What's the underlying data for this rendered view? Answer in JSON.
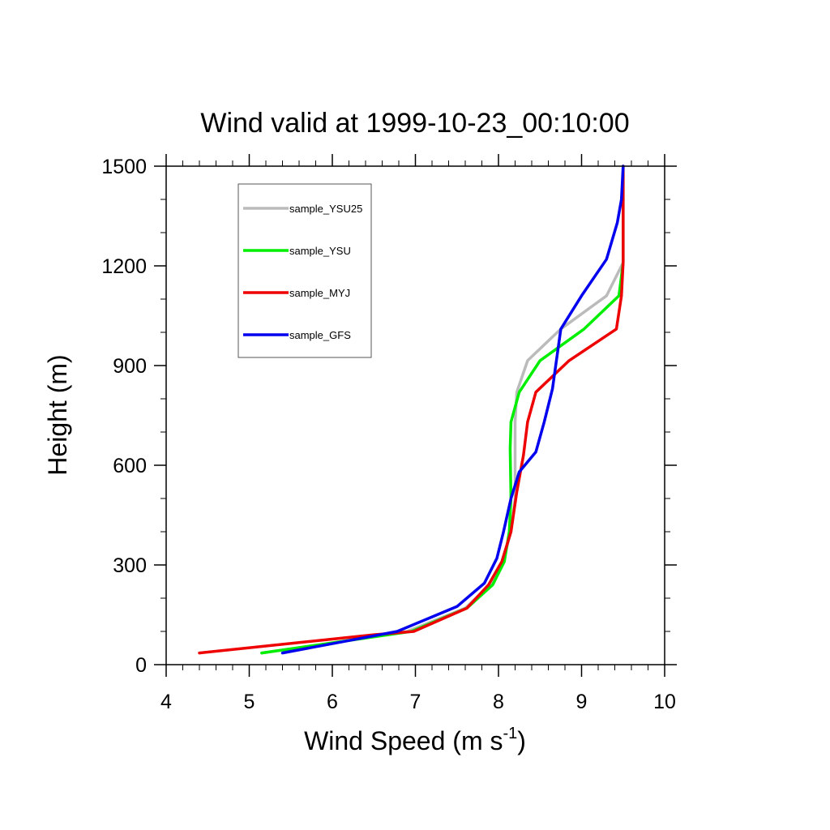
{
  "chart_data": {
    "type": "line",
    "title": "Wind valid at 1999-10-23_00:10:00",
    "xlabel_main": "Wind Speed (m s",
    "xlabel_sup": "-1",
    "xlabel_close": ")",
    "ylabel": "Height (m)",
    "xlim": [
      4,
      10
    ],
    "ylim": [
      0,
      1500
    ],
    "x_ticks": [
      4,
      5,
      6,
      7,
      8,
      9,
      10
    ],
    "y_ticks": [
      0,
      300,
      600,
      900,
      1200,
      1500
    ],
    "grid": false,
    "legend_position": "top-left",
    "series": [
      {
        "name": "sample_YSU25",
        "color": "#bbbbbb",
        "points": [
          [
            5.15,
            35
          ],
          [
            5.9,
            62
          ],
          [
            6.9,
            100
          ],
          [
            7.6,
            170
          ],
          [
            7.9,
            240
          ],
          [
            8.05,
            310
          ],
          [
            8.15,
            400
          ],
          [
            8.2,
            500
          ],
          [
            8.2,
            600
          ],
          [
            8.2,
            730
          ],
          [
            8.22,
            820
          ],
          [
            8.35,
            915
          ],
          [
            8.75,
            1010
          ],
          [
            9.3,
            1110
          ],
          [
            9.5,
            1210
          ],
          [
            9.5,
            1330
          ],
          [
            9.5,
            1500
          ]
        ]
      },
      {
        "name": "sample_YSU",
        "color": "#00ee00",
        "points": [
          [
            5.15,
            35
          ],
          [
            5.9,
            62
          ],
          [
            6.95,
            100
          ],
          [
            7.62,
            170
          ],
          [
            7.93,
            240
          ],
          [
            8.07,
            310
          ],
          [
            8.13,
            400
          ],
          [
            8.15,
            500
          ],
          [
            8.14,
            650
          ],
          [
            8.15,
            730
          ],
          [
            8.25,
            820
          ],
          [
            8.5,
            915
          ],
          [
            9.03,
            1010
          ],
          [
            9.45,
            1110
          ],
          [
            9.5,
            1210
          ],
          [
            9.5,
            1330
          ],
          [
            9.5,
            1500
          ]
        ]
      },
      {
        "name": "sample_MYJ",
        "color": "#ee0000",
        "points": [
          [
            4.4,
            35
          ],
          [
            6.5,
            90
          ],
          [
            6.98,
            100
          ],
          [
            7.62,
            170
          ],
          [
            7.88,
            240
          ],
          [
            8.04,
            310
          ],
          [
            8.15,
            400
          ],
          [
            8.22,
            520
          ],
          [
            8.3,
            630
          ],
          [
            8.35,
            730
          ],
          [
            8.45,
            820
          ],
          [
            8.85,
            915
          ],
          [
            9.42,
            1010
          ],
          [
            9.48,
            1110
          ],
          [
            9.5,
            1210
          ],
          [
            9.5,
            1330
          ],
          [
            9.5,
            1500
          ]
        ]
      },
      {
        "name": "sample_GFS",
        "color": "#0000ee",
        "points": [
          [
            5.4,
            35
          ],
          [
            6.25,
            75
          ],
          [
            6.78,
            100
          ],
          [
            7.5,
            175
          ],
          [
            7.83,
            245
          ],
          [
            7.98,
            320
          ],
          [
            8.06,
            400
          ],
          [
            8.15,
            500
          ],
          [
            8.25,
            580
          ],
          [
            8.45,
            640
          ],
          [
            8.55,
            730
          ],
          [
            8.65,
            830
          ],
          [
            8.75,
            1010
          ],
          [
            9.0,
            1110
          ],
          [
            9.3,
            1220
          ],
          [
            9.43,
            1330
          ],
          [
            9.48,
            1400
          ],
          [
            9.5,
            1500
          ]
        ]
      }
    ]
  }
}
